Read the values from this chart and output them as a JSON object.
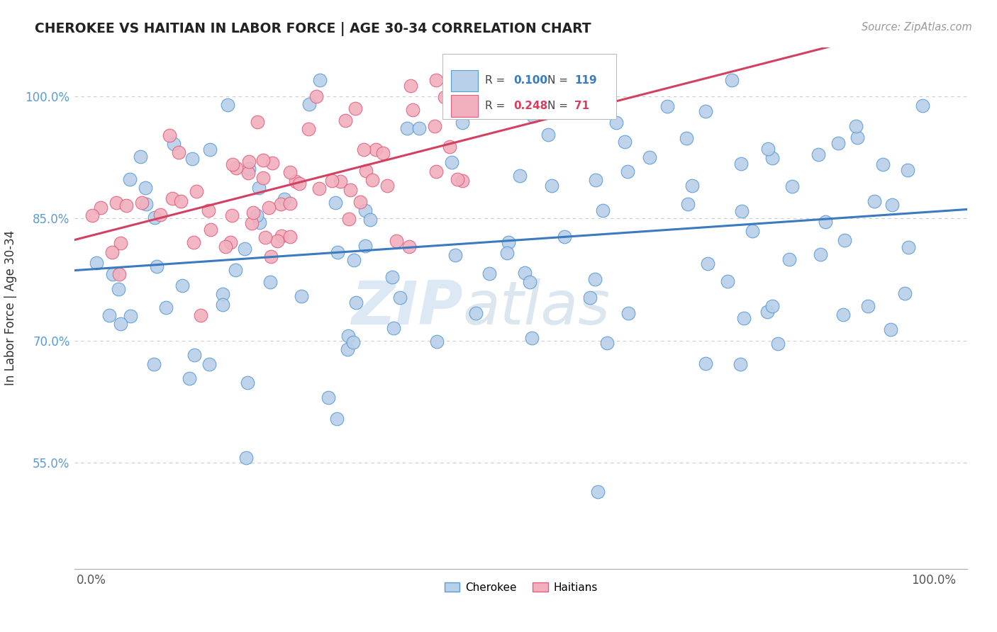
{
  "title": "CHEROKEE VS HAITIAN IN LABOR FORCE | AGE 30-34 CORRELATION CHART",
  "source_text": "Source: ZipAtlas.com",
  "ylabel": "In Labor Force | Age 30-34",
  "watermark_zip": "ZIP",
  "watermark_atlas": "atlas",
  "xlim": [
    -0.02,
    1.04
  ],
  "ylim": [
    0.42,
    1.06
  ],
  "xtick_vals": [
    0.0,
    1.0
  ],
  "xtick_labels": [
    "0.0%",
    "100.0%"
  ],
  "ytick_vals": [
    0.55,
    0.7,
    0.85,
    1.0
  ],
  "ytick_labels": [
    "55.0%",
    "70.0%",
    "85.0%",
    "100.0%"
  ],
  "cherokee_R": 0.1,
  "cherokee_N": 119,
  "haitian_R": 0.248,
  "haitian_N": 71,
  "cherokee_color": "#b8d0e8",
  "haitian_color": "#f2b0be",
  "cherokee_edge_color": "#5b9bd5",
  "haitian_edge_color": "#e06080",
  "cherokee_line_color": "#3a7abf",
  "haitian_line_color": "#d44060",
  "legend_cherokee_label": "Cherokee",
  "legend_haitian_label": "Haitians",
  "background_color": "#ffffff",
  "grid_color": "#cccccc",
  "title_color": "#222222",
  "source_color": "#999999",
  "ylabel_color": "#333333",
  "ytick_color": "#5b9bd5"
}
